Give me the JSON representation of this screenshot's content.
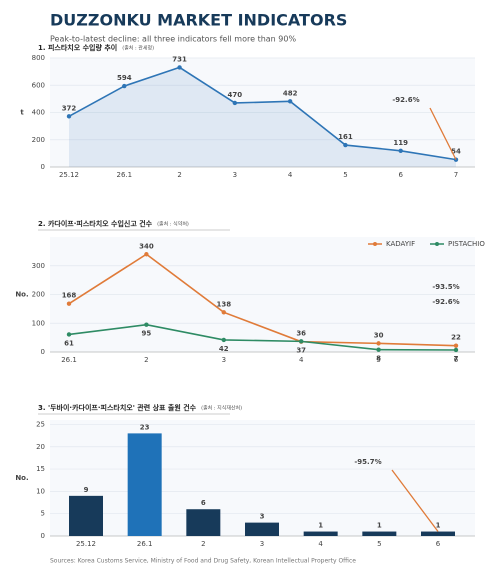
{
  "title": "DUZZONKU MARKET INDICATORS",
  "subtitle": "Peak-to-latest decline: all three indicators fell more than 90%",
  "source": "Sources: Korea Customs Service, Ministry of Food and Drug Safety, Korean Intellectual Property Office",
  "chart_data": [
    {
      "type": "line",
      "title": "1. 피스타치오 수입량 추이",
      "source_note": "(출처 : 관세청)",
      "y_label": "t",
      "categories": [
        "25.12",
        "26.1",
        "2",
        "3",
        "4",
        "5",
        "6",
        "7"
      ],
      "series": [
        {
          "name": null,
          "color": "#2e75b6",
          "values": [
            372,
            594,
            731,
            470,
            482,
            161,
            119,
            54
          ]
        }
      ],
      "area": true,
      "ylim": [
        0,
        800
      ],
      "yticks": [
        0,
        200,
        400,
        600,
        800
      ],
      "grid": true,
      "annotations": [
        {
          "text": "-92.6%",
          "color": "#e07b39"
        }
      ]
    },
    {
      "type": "line",
      "title": "2. 카다이프·피스타치오 수입신고 건수",
      "source_note": "(출처 : 식약처)",
      "y_label": "No.",
      "categories": [
        "26.1",
        "2",
        "3",
        "4",
        "5",
        "6"
      ],
      "series": [
        {
          "name": "KADAYIF",
          "color": "#e07b39",
          "values": [
            168,
            340,
            138,
            36,
            30,
            22
          ]
        },
        {
          "name": "PISTACHIO",
          "color": "#2e8b64",
          "values": [
            61,
            95,
            42,
            37,
            8,
            7
          ]
        }
      ],
      "area": false,
      "ylim": [
        0,
        400
      ],
      "yticks": [
        0,
        100,
        200,
        300
      ],
      "grid": true,
      "legend": "upper right",
      "annotations": [
        {
          "text": "-93.5%",
          "color": "#e07b39"
        },
        {
          "text": "-92.6%",
          "color": "#2e8b64"
        }
      ]
    },
    {
      "type": "bar",
      "title": "3. '두바이·카다이프·피스타치오' 관련 상표 출원 건수",
      "source_note": "(출처 : 지식재산처)",
      "y_label": "No.",
      "categories": [
        "25.12",
        "26.1",
        "2",
        "3",
        "4",
        "5",
        "6"
      ],
      "values": [
        9,
        23,
        6,
        3,
        1,
        1,
        1
      ],
      "colors": [
        "#173a5a",
        "#1f72b8",
        "#173a5a",
        "#173a5a",
        "#173a5a",
        "#173a5a",
        "#173a5a"
      ],
      "ylim": [
        0,
        26
      ],
      "yticks": [
        0,
        5,
        10,
        15,
        20,
        25
      ],
      "grid": true,
      "annotations": [
        {
          "text": "-95.7%",
          "color": "#e07b39"
        }
      ]
    }
  ]
}
